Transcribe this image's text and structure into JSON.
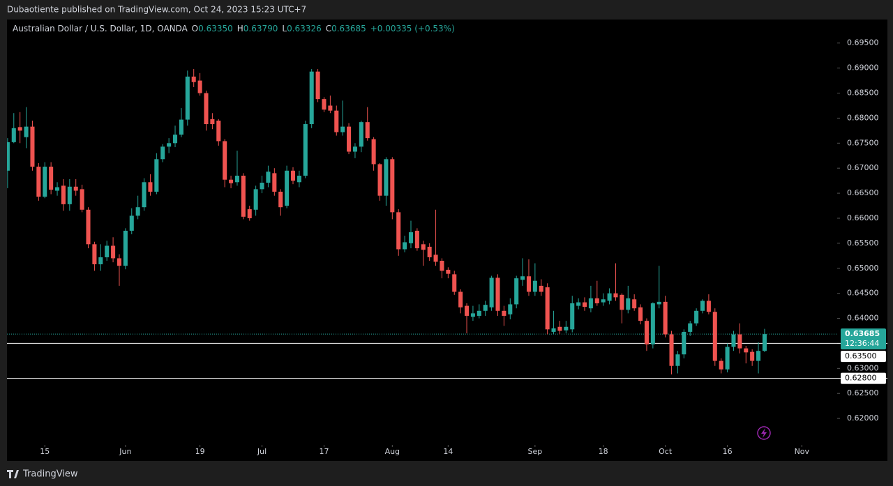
{
  "header": {
    "published": "Dubaotiente published on TradingView.com, Oct 24, 2023 15:23 UTC+7"
  },
  "footer": {
    "brand": "TradingView"
  },
  "chart_data": {
    "type": "candlestick",
    "symbol": "Australian Dollar / U.S. Dollar, 1D, OANDA",
    "ohlc_legend": [
      {
        "label": "O",
        "value": "0.63350"
      },
      {
        "label": "H",
        "value": "0.63790"
      },
      {
        "label": "L",
        "value": "0.63326"
      },
      {
        "label": "C",
        "value": "0.63685"
      }
    ],
    "change": "+0.00335 (+0.53%)",
    "up_color": "#26a69a",
    "down_color": "#ef5350",
    "open": [
      0.6695,
      0.6752,
      0.6782,
      0.6762,
      0.6783,
      0.6703,
      0.6643,
      0.6703,
      0.6655,
      0.6665,
      0.6628,
      0.6663,
      0.6658,
      0.6617,
      0.6548,
      0.6508,
      0.6522,
      0.6545,
      0.652,
      0.6505,
      0.6575,
      0.6605,
      0.6622,
      0.6672,
      0.6653,
      0.6718,
      0.6743,
      0.675,
      0.6767,
      0.6797,
      0.6883,
      0.6875,
      0.685,
      0.6798,
      0.6795,
      0.6754,
      0.6677,
      0.6672,
      0.6685,
      0.6618,
      0.6617,
      0.6658,
      0.6671,
      0.669,
      0.6653,
      0.6625,
      0.6695,
      0.6672,
      0.6685,
      0.6788,
      0.6893,
      0.6838,
      0.6825,
      0.6815,
      0.6772,
      0.6783,
      0.6733,
      0.6743,
      0.6792,
      0.6758,
      0.6708,
      0.6645,
      0.6718,
      0.6612,
      0.6538,
      0.655,
      0.6575,
      0.6548,
      0.6543,
      0.6527,
      0.6515,
      0.6497,
      0.6488,
      0.6453,
      0.6425,
      0.6403,
      0.6405,
      0.6415,
      0.6422,
      0.6481,
      0.6415,
      0.6408,
      0.6428,
      0.6477,
      0.6484,
      0.6453,
      0.6465,
      0.6462,
      0.6373,
      0.6383,
      0.6376,
      0.6378,
      0.6425,
      0.6432,
      0.642,
      0.644,
      0.6432,
      0.6435,
      0.645,
      0.6447,
      0.6417,
      0.6438,
      0.6422,
      0.6395,
      0.6348,
      0.6428,
      0.6433,
      0.6368,
      0.6305,
      0.6328,
      0.6373,
      0.639,
      0.6415,
      0.6435,
      0.6413,
      0.6315,
      0.6298,
      0.6343,
      0.6368,
      0.634,
      0.6333,
      0.6315,
      0.6335
    ],
    "high": [
      0.676,
      0.681,
      0.6812,
      0.6822,
      0.6795,
      0.671,
      0.6712,
      0.6712,
      0.6672,
      0.6678,
      0.6678,
      0.6678,
      0.6667,
      0.6622,
      0.6553,
      0.6548,
      0.6555,
      0.6562,
      0.6528,
      0.658,
      0.662,
      0.6645,
      0.668,
      0.6688,
      0.673,
      0.6748,
      0.676,
      0.6785,
      0.682,
      0.6895,
      0.6898,
      0.689,
      0.6855,
      0.681,
      0.6798,
      0.6758,
      0.6685,
      0.6735,
      0.669,
      0.6625,
      0.6665,
      0.6685,
      0.6705,
      0.67,
      0.6658,
      0.6705,
      0.6702,
      0.6695,
      0.6795,
      0.6898,
      0.6898,
      0.6842,
      0.6845,
      0.6825,
      0.6835,
      0.679,
      0.675,
      0.6795,
      0.6822,
      0.6762,
      0.671,
      0.6722,
      0.6722,
      0.6618,
      0.6565,
      0.6595,
      0.658,
      0.6555,
      0.655,
      0.6617,
      0.652,
      0.6502,
      0.6495,
      0.6458,
      0.643,
      0.6425,
      0.6428,
      0.6435,
      0.6485,
      0.6488,
      0.6425,
      0.644,
      0.6485,
      0.652,
      0.6518,
      0.651,
      0.6478,
      0.647,
      0.6415,
      0.6395,
      0.6395,
      0.6445,
      0.644,
      0.6442,
      0.6465,
      0.6475,
      0.645,
      0.646,
      0.651,
      0.645,
      0.6465,
      0.6448,
      0.6428,
      0.64,
      0.6432,
      0.6505,
      0.6445,
      0.6375,
      0.6335,
      0.6378,
      0.6395,
      0.642,
      0.6438,
      0.6448,
      0.642,
      0.632,
      0.635,
      0.6375,
      0.639,
      0.6345,
      0.6338,
      0.6352,
      0.6379
    ],
    "low": [
      0.666,
      0.675,
      0.675,
      0.674,
      0.6695,
      0.6635,
      0.664,
      0.6648,
      0.6645,
      0.6615,
      0.6615,
      0.6645,
      0.6612,
      0.654,
      0.6495,
      0.6495,
      0.6515,
      0.6512,
      0.6465,
      0.6498,
      0.6568,
      0.6598,
      0.6615,
      0.6645,
      0.6648,
      0.6712,
      0.673,
      0.6742,
      0.6762,
      0.6785,
      0.6862,
      0.6845,
      0.6775,
      0.6778,
      0.6745,
      0.6662,
      0.666,
      0.6665,
      0.6598,
      0.6595,
      0.6605,
      0.665,
      0.6662,
      0.6645,
      0.6605,
      0.662,
      0.6668,
      0.6662,
      0.668,
      0.678,
      0.6832,
      0.6812,
      0.681,
      0.6765,
      0.6765,
      0.6728,
      0.672,
      0.6732,
      0.6755,
      0.6695,
      0.6635,
      0.6625,
      0.6598,
      0.6525,
      0.6532,
      0.654,
      0.6535,
      0.6505,
      0.6515,
      0.6505,
      0.648,
      0.648,
      0.6447,
      0.641,
      0.637,
      0.6395,
      0.64,
      0.6405,
      0.6415,
      0.6405,
      0.6385,
      0.6398,
      0.642,
      0.6465,
      0.6445,
      0.6445,
      0.6445,
      0.6368,
      0.6368,
      0.6368,
      0.637,
      0.6372,
      0.6418,
      0.6415,
      0.6412,
      0.6425,
      0.6425,
      0.6428,
      0.6435,
      0.639,
      0.641,
      0.6415,
      0.6388,
      0.6335,
      0.634,
      0.642,
      0.6362,
      0.6288,
      0.629,
      0.632,
      0.6365,
      0.6385,
      0.641,
      0.6408,
      0.6305,
      0.629,
      0.6292,
      0.6335,
      0.633,
      0.631,
      0.6305,
      0.629,
      0.63326
    ],
    "close": [
      0.6752,
      0.678,
      0.6775,
      0.6783,
      0.6703,
      0.6643,
      0.6703,
      0.6657,
      0.6662,
      0.6628,
      0.6663,
      0.6655,
      0.6617,
      0.6548,
      0.6508,
      0.6522,
      0.6545,
      0.652,
      0.6505,
      0.6575,
      0.6605,
      0.6622,
      0.6672,
      0.6653,
      0.6718,
      0.6743,
      0.675,
      0.6767,
      0.6797,
      0.6883,
      0.6872,
      0.685,
      0.6788,
      0.6788,
      0.6754,
      0.6677,
      0.667,
      0.6685,
      0.6603,
      0.66,
      0.6658,
      0.6671,
      0.6693,
      0.6653,
      0.6622,
      0.6695,
      0.6675,
      0.6685,
      0.6788,
      0.6893,
      0.6838,
      0.6817,
      0.6815,
      0.6772,
      0.6783,
      0.6733,
      0.6743,
      0.6792,
      0.676,
      0.6708,
      0.6645,
      0.6718,
      0.6612,
      0.6538,
      0.6552,
      0.6572,
      0.654,
      0.6537,
      0.6522,
      0.6513,
      0.6495,
      0.6489,
      0.6453,
      0.6422,
      0.6405,
      0.641,
      0.6415,
      0.6427,
      0.6481,
      0.6415,
      0.6405,
      0.6428,
      0.648,
      0.6484,
      0.6453,
      0.6475,
      0.6453,
      0.6378,
      0.638,
      0.6375,
      0.6383,
      0.643,
      0.6432,
      0.6423,
      0.644,
      0.643,
      0.6438,
      0.645,
      0.6442,
      0.6417,
      0.644,
      0.642,
      0.6395,
      0.6348,
      0.643,
      0.6433,
      0.6368,
      0.6305,
      0.6328,
      0.6373,
      0.639,
      0.6415,
      0.6435,
      0.6413,
      0.6315,
      0.6298,
      0.6343,
      0.6368,
      0.634,
      0.6332,
      0.6315,
      0.6335,
      0.63685
    ],
    "xlim": [
      -0.1,
      133.7
    ],
    "xticks": [
      {
        "value": 6,
        "label": "15"
      },
      {
        "value": 19,
        "label": "Jun"
      },
      {
        "value": 31,
        "label": "19"
      },
      {
        "value": 41,
        "label": "Jul"
      },
      {
        "value": 51,
        "label": "17"
      },
      {
        "value": 62,
        "label": "Aug"
      },
      {
        "value": 71,
        "label": "14"
      },
      {
        "value": 85,
        "label": "Sep"
      },
      {
        "value": 96,
        "label": "18"
      },
      {
        "value": 106,
        "label": "Oct"
      },
      {
        "value": 116,
        "label": "16"
      },
      {
        "value": 128,
        "label": "Nov"
      }
    ],
    "ylim": [
      0.615,
      0.6997
    ],
    "yticks": [
      {
        "value": 0.62,
        "label": "0.62000"
      },
      {
        "value": 0.625,
        "label": "0.62500"
      },
      {
        "value": 0.63,
        "label": "0.63000"
      },
      {
        "value": 0.635,
        "label": "0.63500"
      },
      {
        "value": 0.64,
        "label": "0.64000"
      },
      {
        "value": 0.645,
        "label": "0.64500"
      },
      {
        "value": 0.65,
        "label": "0.65000"
      },
      {
        "value": 0.655,
        "label": "0.65500"
      },
      {
        "value": 0.66,
        "label": "0.66000"
      },
      {
        "value": 0.665,
        "label": "0.66500"
      },
      {
        "value": 0.67,
        "label": "0.67000"
      },
      {
        "value": 0.675,
        "label": "0.67500"
      },
      {
        "value": 0.68,
        "label": "0.68000"
      },
      {
        "value": 0.685,
        "label": "0.68500"
      },
      {
        "value": 0.69,
        "label": "0.69000"
      },
      {
        "value": 0.695,
        "label": "0.69500"
      }
    ],
    "last_price": {
      "value": 0.63685,
      "label": "0.63685",
      "countdown": "12:36:44"
    },
    "hlines": [
      {
        "value": 0.635,
        "label": "0.63500"
      },
      {
        "value": 0.628,
        "label": "0.62800"
      }
    ]
  }
}
